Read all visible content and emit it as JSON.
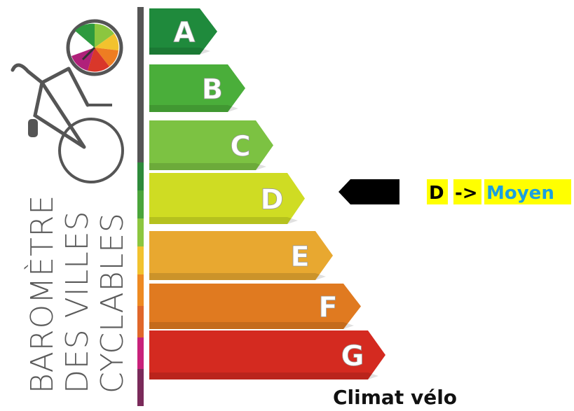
{
  "logo": {
    "lines": [
      "BAROMÈTRE",
      "DES VILLES",
      "CYCLABLES"
    ]
  },
  "grades": [
    "A",
    "B",
    "C",
    "D",
    "E",
    "F",
    "G"
  ],
  "rating": {
    "grade": "D",
    "arrow": "->",
    "label": "Moyen"
  },
  "caption": "Climat vélo"
}
